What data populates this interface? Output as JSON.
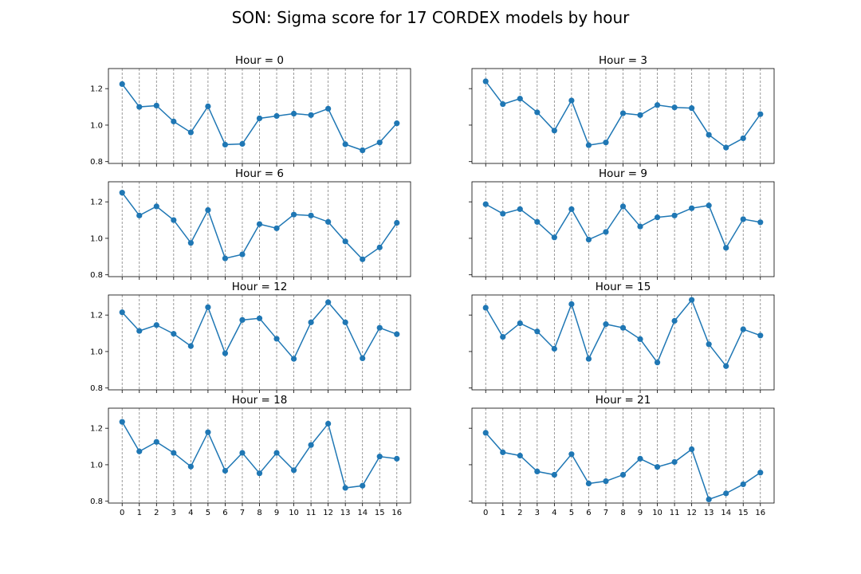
{
  "title": "SON: Sigma score for 17 CORDEX models by hour",
  "colors": {
    "series": "#1f77b4"
  },
  "chart_data": [
    {
      "type": "line",
      "title": "Hour = 0",
      "x": [
        0,
        1,
        2,
        3,
        4,
        5,
        6,
        7,
        8,
        9,
        10,
        11,
        12,
        13,
        14,
        15,
        16
      ],
      "ylim": [
        0.79,
        1.31
      ],
      "yticks": [
        "0.8",
        "1.0",
        "1.2"
      ],
      "grid": "x-dashed",
      "values": [
        1.225,
        1.1,
        1.107,
        1.02,
        0.96,
        1.103,
        0.893,
        0.897,
        1.037,
        1.05,
        1.063,
        1.055,
        1.09,
        0.895,
        0.862,
        0.905,
        1.01
      ]
    },
    {
      "type": "line",
      "title": "Hour = 3",
      "x": [
        0,
        1,
        2,
        3,
        4,
        5,
        6,
        7,
        8,
        9,
        10,
        11,
        12,
        13,
        14,
        15,
        16
      ],
      "ylim": [
        0.79,
        1.31
      ],
      "yticks": [
        "0.8",
        "1.0",
        "1.2"
      ],
      "grid": "x-dashed",
      "values": [
        1.24,
        1.115,
        1.145,
        1.07,
        0.97,
        1.135,
        0.89,
        0.905,
        1.065,
        1.055,
        1.11,
        1.097,
        1.093,
        0.947,
        0.877,
        0.928,
        1.06
      ]
    },
    {
      "type": "line",
      "title": "Hour = 6",
      "x": [
        0,
        1,
        2,
        3,
        4,
        5,
        6,
        7,
        8,
        9,
        10,
        11,
        12,
        13,
        14,
        15,
        16
      ],
      "ylim": [
        0.79,
        1.31
      ],
      "yticks": [
        "0.8",
        "1.0",
        "1.2"
      ],
      "grid": "x-dashed",
      "values": [
        1.25,
        1.125,
        1.175,
        1.1,
        0.975,
        1.155,
        0.89,
        0.912,
        1.078,
        1.055,
        1.13,
        1.125,
        1.09,
        0.983,
        0.885,
        0.95,
        1.085
      ]
    },
    {
      "type": "line",
      "title": "Hour = 9",
      "x": [
        0,
        1,
        2,
        3,
        4,
        5,
        6,
        7,
        8,
        9,
        10,
        11,
        12,
        13,
        14,
        15,
        16
      ],
      "ylim": [
        0.79,
        1.31
      ],
      "yticks": [
        "0.8",
        "1.0",
        "1.2"
      ],
      "grid": "x-dashed",
      "values": [
        1.187,
        1.135,
        1.16,
        1.09,
        1.005,
        1.16,
        0.993,
        1.035,
        1.175,
        1.065,
        1.115,
        1.125,
        1.165,
        1.18,
        0.948,
        1.105,
        1.088
      ]
    },
    {
      "type": "line",
      "title": "Hour = 12",
      "x": [
        0,
        1,
        2,
        3,
        4,
        5,
        6,
        7,
        8,
        9,
        10,
        11,
        12,
        13,
        14,
        15,
        16
      ],
      "ylim": [
        0.79,
        1.31
      ],
      "yticks": [
        "0.8",
        "1.0",
        "1.2"
      ],
      "grid": "x-dashed",
      "values": [
        1.215,
        1.113,
        1.145,
        1.097,
        1.03,
        1.243,
        0.99,
        1.173,
        1.182,
        1.07,
        0.96,
        1.16,
        1.27,
        1.16,
        0.963,
        1.13,
        1.095
      ]
    },
    {
      "type": "line",
      "title": "Hour = 15",
      "x": [
        0,
        1,
        2,
        3,
        4,
        5,
        6,
        7,
        8,
        9,
        10,
        11,
        12,
        13,
        14,
        15,
        16
      ],
      "ylim": [
        0.79,
        1.31
      ],
      "yticks": [
        "0.8",
        "1.0",
        "1.2"
      ],
      "grid": "x-dashed",
      "values": [
        1.24,
        1.08,
        1.155,
        1.11,
        1.015,
        1.26,
        0.96,
        1.15,
        1.13,
        1.068,
        0.94,
        1.168,
        1.283,
        1.04,
        0.92,
        1.122,
        1.088
      ]
    },
    {
      "type": "line",
      "title": "Hour = 18",
      "x": [
        0,
        1,
        2,
        3,
        4,
        5,
        6,
        7,
        8,
        9,
        10,
        11,
        12,
        13,
        14,
        15,
        16
      ],
      "ylim": [
        0.79,
        1.31
      ],
      "yticks": [
        "0.8",
        "1.0",
        "1.2"
      ],
      "grid": "x-dashed",
      "values": [
        1.235,
        1.073,
        1.125,
        1.065,
        0.99,
        1.178,
        0.967,
        1.065,
        0.953,
        1.065,
        0.97,
        1.108,
        1.225,
        0.873,
        0.885,
        1.045,
        1.033
      ]
    },
    {
      "type": "line",
      "title": "Hour = 21",
      "x": [
        0,
        1,
        2,
        3,
        4,
        5,
        6,
        7,
        8,
        9,
        10,
        11,
        12,
        13,
        14,
        15,
        16
      ],
      "ylim": [
        0.79,
        1.31
      ],
      "yticks": [
        "0.8",
        "1.0",
        "1.2"
      ],
      "grid": "x-dashed",
      "values": [
        1.175,
        1.068,
        1.05,
        0.963,
        0.945,
        1.058,
        0.897,
        0.91,
        0.945,
        1.033,
        0.988,
        1.015,
        1.085,
        0.81,
        0.843,
        0.893,
        0.957
      ]
    }
  ]
}
